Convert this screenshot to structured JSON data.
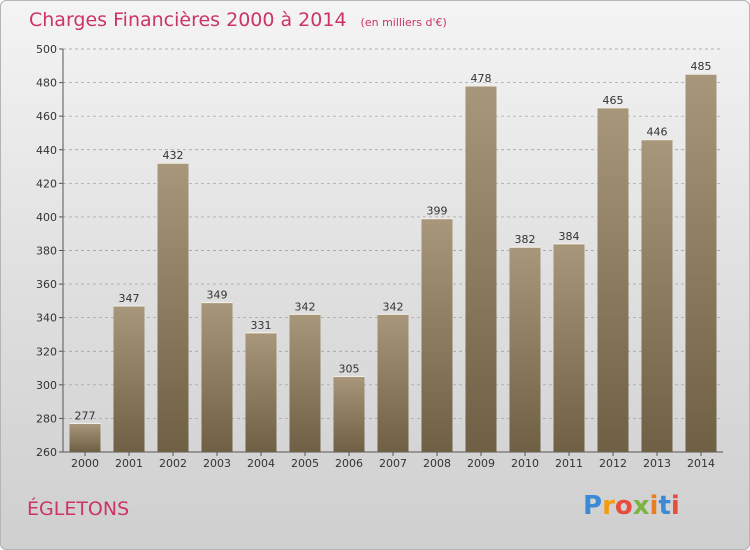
{
  "title": "Charges Financières 2000 à 2014",
  "subtitle": "(en milliers d'€)",
  "town": "ÉGLETONS",
  "logo": {
    "letters": [
      "P",
      "r",
      "o",
      "x",
      "i",
      "t",
      "i"
    ],
    "colors": [
      "#3b8ad6",
      "#f39c12",
      "#e74c3c",
      "#7cb342",
      "#e67e22",
      "#3b8ad6",
      "#e74c3c"
    ]
  },
  "colors": {
    "bar_top": "#a8977a",
    "bar_bottom": "#6f5f44",
    "text_accent": "#cc3366",
    "grid": "#9a9a9a"
  },
  "chart_data": {
    "type": "bar",
    "categories": [
      "2000",
      "2001",
      "2002",
      "2003",
      "2004",
      "2005",
      "2006",
      "2007",
      "2008",
      "2009",
      "2010",
      "2011",
      "2012",
      "2013",
      "2014"
    ],
    "values": [
      277,
      347,
      432,
      349,
      331,
      342,
      305,
      342,
      399,
      478,
      382,
      384,
      465,
      446,
      485
    ],
    "yticks": [
      260,
      280,
      300,
      320,
      340,
      360,
      380,
      400,
      420,
      440,
      460,
      480,
      500
    ],
    "ylim": [
      260,
      500
    ],
    "grid": "horizontal dashed"
  }
}
